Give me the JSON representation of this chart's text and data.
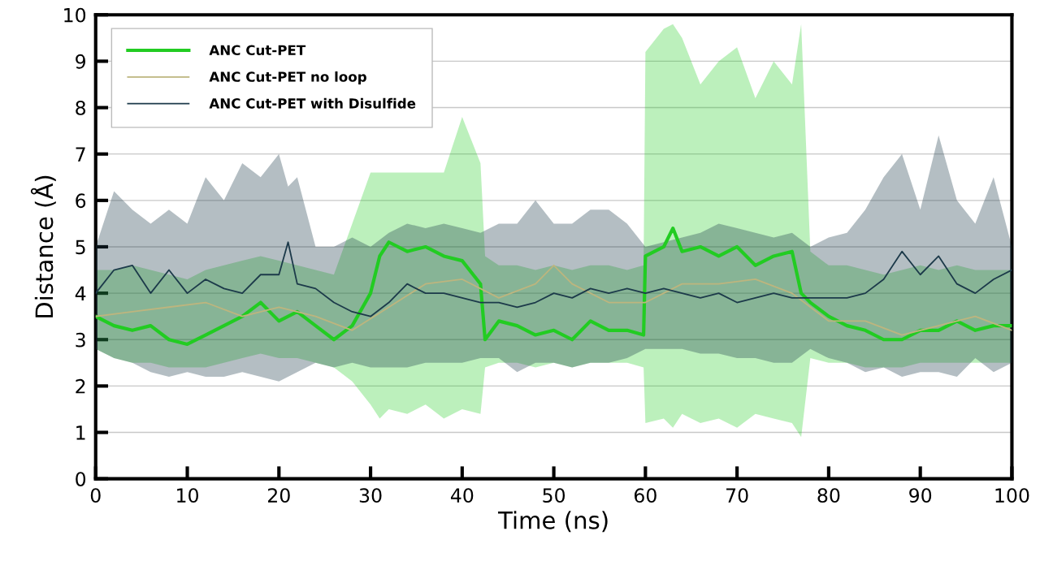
{
  "chart_data": {
    "type": "line",
    "xlabel": "Time (ns)",
    "ylabel": "Distance (Å)",
    "xlim": [
      0,
      100
    ],
    "ylim": [
      0,
      10
    ],
    "xticks": [
      0,
      10,
      20,
      30,
      40,
      50,
      60,
      70,
      80,
      90,
      100
    ],
    "yticks": [
      0,
      1,
      2,
      3,
      4,
      5,
      6,
      7,
      8,
      9,
      10
    ],
    "grid": "y",
    "legend": "top left",
    "series": [
      {
        "name": "ANC Cut-PET",
        "color": "#22cc22",
        "x": [
          0,
          2,
          4,
          6,
          8,
          10,
          12,
          14,
          16,
          18,
          20,
          22,
          24,
          26,
          28,
          30,
          31,
          32,
          34,
          36,
          38,
          40,
          42,
          42.5,
          44,
          46,
          48,
          50,
          52,
          54,
          56,
          58,
          59.8,
          60,
          62,
          63,
          64,
          66,
          68,
          70,
          72,
          74,
          76,
          77,
          78,
          80,
          82,
          84,
          86,
          88,
          90,
          92,
          94,
          96,
          98,
          100
        ],
        "values": [
          3.5,
          3.3,
          3.2,
          3.3,
          3.0,
          2.9,
          3.1,
          3.3,
          3.5,
          3.8,
          3.4,
          3.6,
          3.3,
          3.0,
          3.3,
          4.0,
          4.8,
          5.1,
          4.9,
          5.0,
          4.8,
          4.7,
          4.2,
          3.0,
          3.4,
          3.3,
          3.1,
          3.2,
          3.0,
          3.4,
          3.2,
          3.2,
          3.1,
          4.8,
          5.0,
          5.4,
          4.9,
          5.0,
          4.8,
          5.0,
          4.6,
          4.8,
          4.9,
          4.0,
          3.8,
          3.5,
          3.3,
          3.2,
          3.0,
          3.0,
          3.2,
          3.2,
          3.4,
          3.2,
          3.3,
          3.3
        ],
        "lower": [
          2.8,
          2.6,
          2.5,
          2.5,
          2.4,
          2.4,
          2.4,
          2.5,
          2.6,
          2.7,
          2.6,
          2.6,
          2.5,
          2.4,
          2.1,
          1.6,
          1.3,
          1.5,
          1.4,
          1.6,
          1.3,
          1.5,
          1.4,
          2.4,
          2.5,
          2.5,
          2.4,
          2.5,
          2.4,
          2.5,
          2.5,
          2.5,
          2.4,
          1.2,
          1.3,
          1.1,
          1.4,
          1.2,
          1.3,
          1.1,
          1.4,
          1.3,
          1.2,
          0.9,
          2.6,
          2.5,
          2.5,
          2.4,
          2.4,
          2.4,
          2.5,
          2.5,
          2.5,
          2.5,
          2.5,
          2.5
        ],
        "upper": [
          4.5,
          4.5,
          4.6,
          4.5,
          4.4,
          4.3,
          4.5,
          4.6,
          4.7,
          4.8,
          4.7,
          4.6,
          4.5,
          4.4,
          5.5,
          6.6,
          6.6,
          6.6,
          6.6,
          6.6,
          6.6,
          7.8,
          6.8,
          4.8,
          4.6,
          4.6,
          4.5,
          4.6,
          4.5,
          4.6,
          4.6,
          4.5,
          4.6,
          9.2,
          9.7,
          9.8,
          9.5,
          8.5,
          9.0,
          9.3,
          8.2,
          9.0,
          8.5,
          9.8,
          4.9,
          4.6,
          4.6,
          4.5,
          4.4,
          4.5,
          4.6,
          4.5,
          4.6,
          4.5,
          4.5,
          4.5
        ]
      },
      {
        "name": "ANC Cut-PET no loop",
        "color": "#bdb57e",
        "x": [
          0,
          4,
          8,
          12,
          16,
          20,
          24,
          28,
          32,
          36,
          40,
          44,
          48,
          50,
          52,
          56,
          60,
          64,
          68,
          72,
          76,
          80,
          84,
          88,
          92,
          96,
          100
        ],
        "values": [
          3.5,
          3.6,
          3.7,
          3.8,
          3.5,
          3.7,
          3.5,
          3.2,
          3.7,
          4.2,
          4.3,
          3.9,
          4.2,
          4.6,
          4.2,
          3.8,
          3.8,
          4.2,
          4.2,
          4.3,
          4.0,
          3.4,
          3.4,
          3.1,
          3.3,
          3.5,
          3.2
        ]
      },
      {
        "name": "ANC Cut-PET with Disulfide",
        "color": "#1c3a4a",
        "x": [
          0,
          2,
          4,
          6,
          8,
          10,
          12,
          14,
          16,
          18,
          20,
          21,
          22,
          24,
          26,
          28,
          30,
          32,
          34,
          36,
          38,
          40,
          42,
          44,
          46,
          48,
          50,
          52,
          54,
          56,
          58,
          60,
          62,
          64,
          66,
          68,
          70,
          72,
          74,
          76,
          78,
          80,
          82,
          84,
          86,
          88,
          90,
          92,
          94,
          96,
          98,
          100
        ],
        "values": [
          4.0,
          4.5,
          4.6,
          4.0,
          4.5,
          4.0,
          4.3,
          4.1,
          4.0,
          4.4,
          4.4,
          5.1,
          4.2,
          4.1,
          3.8,
          3.6,
          3.5,
          3.8,
          4.2,
          4.0,
          4.0,
          3.9,
          3.8,
          3.8,
          3.7,
          3.8,
          4.0,
          3.9,
          4.1,
          4.0,
          4.1,
          4.0,
          4.1,
          4.0,
          3.9,
          4.0,
          3.8,
          3.9,
          4.0,
          3.9,
          3.9,
          3.9,
          3.9,
          4.0,
          4.3,
          4.9,
          4.4,
          4.8,
          4.2,
          4.0,
          4.3,
          4.5
        ],
        "lower": [
          2.8,
          2.6,
          2.5,
          2.3,
          2.2,
          2.3,
          2.2,
          2.2,
          2.3,
          2.2,
          2.1,
          2.2,
          2.3,
          2.5,
          2.4,
          2.5,
          2.4,
          2.4,
          2.4,
          2.5,
          2.5,
          2.5,
          2.6,
          2.6,
          2.3,
          2.5,
          2.5,
          2.4,
          2.5,
          2.5,
          2.6,
          2.8,
          2.8,
          2.8,
          2.7,
          2.7,
          2.6,
          2.6,
          2.5,
          2.5,
          2.8,
          2.6,
          2.5,
          2.3,
          2.4,
          2.2,
          2.3,
          2.3,
          2.2,
          2.6,
          2.3,
          2.5
        ],
        "upper": [
          5.0,
          6.2,
          5.8,
          5.5,
          5.8,
          5.5,
          6.5,
          6.0,
          6.8,
          6.5,
          7.0,
          6.3,
          6.5,
          5.0,
          5.0,
          5.2,
          5.0,
          5.3,
          5.5,
          5.4,
          5.5,
          5.4,
          5.3,
          5.5,
          5.5,
          6.0,
          5.5,
          5.5,
          5.8,
          5.8,
          5.5,
          5.0,
          5.1,
          5.2,
          5.3,
          5.5,
          5.4,
          5.3,
          5.2,
          5.3,
          5.0,
          5.2,
          5.3,
          5.8,
          6.5,
          7.0,
          5.8,
          7.4,
          6.0,
          5.5,
          6.5,
          5.0
        ]
      }
    ]
  }
}
